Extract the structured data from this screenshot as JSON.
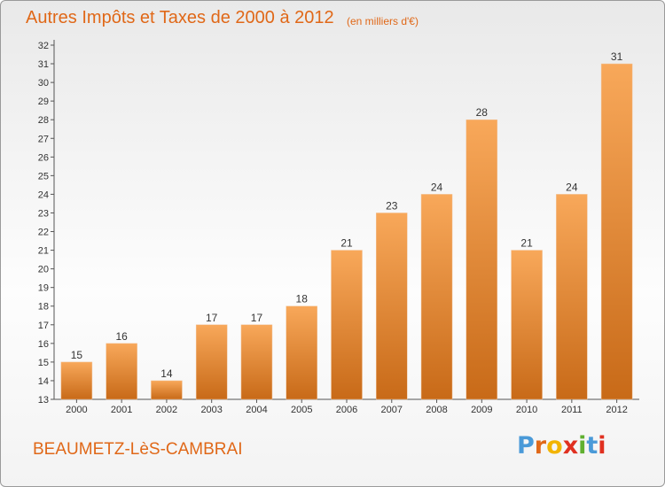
{
  "title": "Autres Impôts et Taxes de 2000 à 2012",
  "subtitle": "(en milliers d'€)",
  "commune": "BEAUMETZ-LèS-CAMBRAI",
  "logo": {
    "letters": [
      "P",
      "r",
      "o",
      "x",
      "i",
      "t",
      "i"
    ],
    "colors": [
      "#4a9ad8",
      "#e06818",
      "#f2b400",
      "#e03020",
      "#60b030",
      "#4a9ad8",
      "#e03020"
    ]
  },
  "colors": {
    "title": "#e06818",
    "bar_top": "#f8a85a",
    "bar_bottom": "#c86a18"
  },
  "chart_data": {
    "type": "bar",
    "title": "Autres Impôts et Taxes de 2000 à 2012",
    "subtitle": "(en milliers d'€)",
    "categories": [
      "2000",
      "2001",
      "2002",
      "2003",
      "2004",
      "2005",
      "2006",
      "2007",
      "2008",
      "2009",
      "2010",
      "2011",
      "2012"
    ],
    "values": [
      15,
      16,
      14,
      17,
      17,
      18,
      21,
      23,
      24,
      28,
      21,
      24,
      31
    ],
    "xlabel": "",
    "ylabel": "",
    "ylim": [
      13,
      32
    ],
    "yticks": [
      "13",
      "14",
      "15",
      "16",
      "17",
      "18",
      "19",
      "20",
      "21",
      "22",
      "23",
      "24",
      "25",
      "26",
      "27",
      "28",
      "29",
      "30",
      "31",
      "32"
    ],
    "grid": false,
    "data_labels": true
  }
}
